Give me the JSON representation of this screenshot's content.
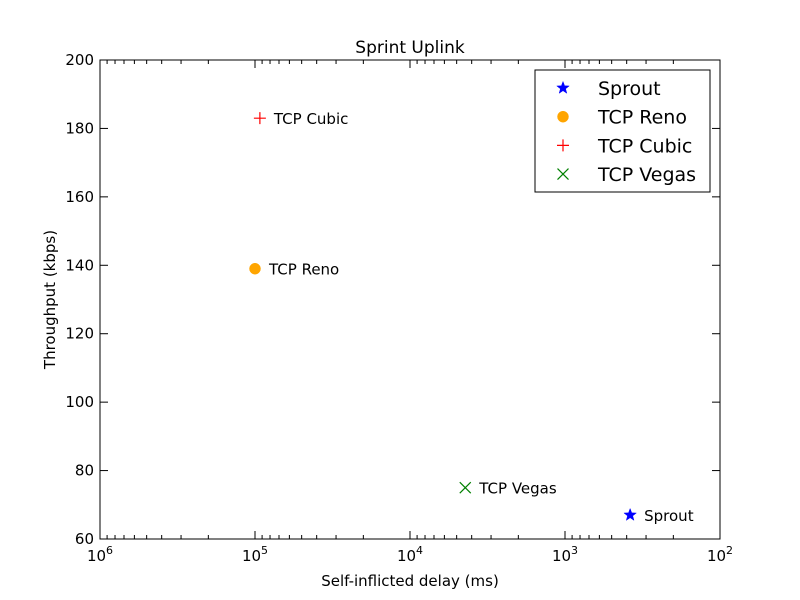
{
  "chart_data": {
    "type": "scatter",
    "title": "Sprint Uplink",
    "xlabel": "Self-inflicted delay (ms)",
    "ylabel": "Throughput (kbps)",
    "x_scale": "log",
    "x_inverted": true,
    "xlim": [
      1000000,
      100
    ],
    "ylim": [
      60,
      200
    ],
    "x_ticks": [
      {
        "value": 1000000,
        "base": "10",
        "exp": "6"
      },
      {
        "value": 100000,
        "base": "10",
        "exp": "5"
      },
      {
        "value": 10000,
        "base": "10",
        "exp": "4"
      },
      {
        "value": 1000,
        "base": "10",
        "exp": "3"
      },
      {
        "value": 100,
        "base": "10",
        "exp": "2"
      }
    ],
    "y_ticks": [
      60,
      80,
      100,
      120,
      140,
      160,
      180,
      200
    ],
    "grid": false,
    "legend_position": "top-right",
    "series": [
      {
        "name": "Sprout",
        "marker": "star",
        "color": "#0000ff",
        "label": "Sprout",
        "x": 380,
        "y": 67
      },
      {
        "name": "TCP Reno",
        "marker": "circle",
        "color": "#ffa500",
        "label": "TCP Reno",
        "x": 100000,
        "y": 139
      },
      {
        "name": "TCP Cubic",
        "marker": "plus",
        "color": "#ff0000",
        "label": "TCP Cubic",
        "x": 93000,
        "y": 183
      },
      {
        "name": "TCP Vegas",
        "marker": "x",
        "color": "#008000",
        "label": "TCP Vegas",
        "x": 4400,
        "y": 75
      }
    ]
  }
}
